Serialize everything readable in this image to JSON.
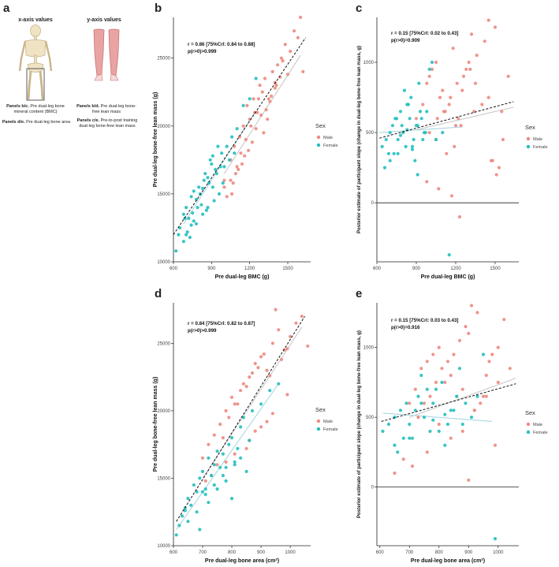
{
  "colors": {
    "male": "#ec8a80",
    "female": "#23bfbf",
    "axis": "#222222",
    "fitMale": "#c9c9c9",
    "fitFemale": "#a9d8e3"
  },
  "panel_a": {
    "letter": "a",
    "x_header": "x-axis values",
    "y_header": "y-axis values",
    "skeleton_icon": "skeleton-icon",
    "legs_icon": "muscle-legs-icon",
    "captions": [
      {
        "bold": "Panels b/c.",
        "text": " Pre dual-leg bone mineral content (BMC)"
      },
      {
        "bold": "Panels d/e.",
        "text": " Pre dual-leg bone area"
      },
      {
        "bold": "Panels b/d.",
        "text": " Pre dual-leg bone-free lean mass"
      },
      {
        "bold": "Panels c/e.",
        "text": " Pre-to-post training dual-leg bone-free lean mass"
      }
    ]
  },
  "chart_data": [
    {
      "id": "b",
      "letter": "b",
      "type": "scatter",
      "xlabel": "Pre dual-leg BMC (g)",
      "ylabel": "Pre dual-leg bone-free lean mass (g)",
      "xlim": [
        600,
        1680
      ],
      "ylim": [
        10000,
        28000
      ],
      "xticks": [
        600,
        900,
        1200,
        1500
      ],
      "yticks": [
        10000,
        15000,
        20000,
        25000
      ],
      "annotation": [
        "r = 0.86 [75%CrI: 0.84 to 0.88]",
        "p(r>0)>0.999"
      ],
      "legend": {
        "title": "Sex",
        "items": [
          "Male",
          "Female"
        ]
      },
      "fits": {
        "overall": [
          [
            600,
            12000
          ],
          [
            1640,
            26500
          ]
        ],
        "male": [
          [
            1000,
            16500
          ],
          [
            1600,
            25200
          ]
        ],
        "female": [
          [
            680,
            12800
          ],
          [
            1240,
            21000
          ]
        ]
      },
      "series": [
        {
          "name": "Male",
          "x": [
            1050,
            1080,
            1120,
            1150,
            1180,
            1200,
            1230,
            1260,
            1280,
            1300,
            1320,
            1350,
            1380,
            1400,
            1420,
            1450,
            1480,
            1500,
            1550,
            1600,
            1050,
            1100,
            1130,
            1170,
            1210,
            1240,
            1270,
            1310,
            1340,
            1360,
            1400,
            1440,
            1460,
            1520,
            1580,
            1620,
            1000,
            1060,
            1090,
            1140,
            1190,
            1250,
            1290,
            1330,
            1370,
            1410,
            1000,
            1020,
            1070,
            1110,
            1160,
            1220
          ],
          "y": [
            17500,
            18500,
            19200,
            20000,
            21500,
            20500,
            22000,
            21000,
            23000,
            22500,
            23500,
            22000,
            24000,
            23200,
            24500,
            25000,
            26000,
            23800,
            27000,
            28000,
            16000,
            17000,
            18000,
            19000,
            20000,
            21000,
            22000,
            19500,
            20500,
            21800,
            22800,
            23600,
            24800,
            25500,
            26500,
            24000,
            15500,
            15000,
            16500,
            17200,
            18200,
            19800,
            20800,
            21200,
            22200,
            23000,
            16000,
            14800,
            15800,
            16800,
            17800,
            18800
          ]
        },
        {
          "name": "Female",
          "x": [
            620,
            650,
            680,
            700,
            720,
            740,
            760,
            780,
            800,
            820,
            840,
            860,
            880,
            900,
            920,
            940,
            960,
            980,
            1000,
            1020,
            1040,
            1060,
            1080,
            1100,
            1150,
            1200,
            1250,
            700,
            730,
            760,
            790,
            810,
            830,
            850,
            870,
            890,
            910,
            930,
            950,
            970,
            990,
            680,
            710,
            750,
            780,
            830,
            870,
            910,
            640,
            690,
            740
          ],
          "y": [
            10800,
            12500,
            13500,
            14000,
            13200,
            14800,
            15200,
            12800,
            15500,
            14200,
            16000,
            13800,
            15800,
            17200,
            14500,
            16500,
            15000,
            18000,
            17000,
            18500,
            17500,
            19200,
            18000,
            19800,
            21500,
            22000,
            23500,
            12000,
            11800,
            13000,
            14000,
            15000,
            13500,
            16500,
            14000,
            17500,
            15500,
            16800,
            18500,
            17000,
            15800,
            11500,
            12200,
            13600,
            14600,
            15400,
            16200,
            17800,
            12000,
            13200,
            12700
          ]
        }
      ]
    },
    {
      "id": "c",
      "letter": "c",
      "type": "scatter",
      "xlabel": "Pre dual-leg BMC (g)",
      "ylabel": "Posterior estimate of participant slope (change in dual-leg bone-free lean mass, g)",
      "xlim": [
        600,
        1680
      ],
      "ylim": [
        -420,
        1320
      ],
      "xticks": [
        600,
        900,
        1200,
        1500
      ],
      "yticks": [
        0,
        500,
        1000
      ],
      "zero_line": true,
      "annotation": [
        "r = 0.15 [75%CrI: 0.02 to 0.43]",
        "p(r>0)=0.909"
      ],
      "legend": {
        "title": "Sex",
        "items": [
          "Male",
          "Female"
        ]
      },
      "fits": {
        "overall": [
          [
            620,
            460
          ],
          [
            1640,
            720
          ]
        ],
        "male": [
          [
            900,
            520
          ],
          [
            1640,
            680
          ]
        ],
        "female": [
          [
            620,
            500
          ],
          [
            1250,
            540
          ]
        ]
      },
      "series": [
        {
          "name": "Male",
          "x": [
            900,
            950,
            980,
            1000,
            1020,
            1050,
            1080,
            1100,
            1120,
            1150,
            1180,
            1200,
            1220,
            1250,
            1280,
            1300,
            1320,
            1350,
            1400,
            1450,
            1500,
            1550,
            1600,
            1000,
            1060,
            1110,
            1160,
            1210,
            1260,
            1310,
            1360,
            1420,
            1470,
            1530,
            1050,
            1130,
            1190,
            1240,
            1340,
            1450,
            1510,
            980,
            1070,
            1170,
            1230,
            1480,
            1560
          ],
          "y": [
            600,
            700,
            850,
            900,
            950,
            1000,
            750,
            800,
            650,
            700,
            1100,
            550,
            600,
            800,
            950,
            1000,
            1200,
            850,
            700,
            1300,
            1250,
            650,
            900,
            500,
            600,
            650,
            750,
            850,
            900,
            950,
            1050,
            1150,
            300,
            250,
            450,
            350,
            400,
            550,
            650,
            750,
            200,
            150,
            100,
            50,
            -100,
            300,
            450
          ]
        },
        {
          "name": "Female",
          "x": [
            640,
            670,
            700,
            720,
            740,
            760,
            780,
            800,
            820,
            840,
            860,
            880,
            900,
            920,
            940,
            960,
            980,
            1000,
            1020,
            1050,
            1100,
            700,
            730,
            760,
            790,
            810,
            830,
            850,
            870,
            890,
            910,
            930,
            950,
            970,
            660,
            690,
            750,
            780,
            830,
            870,
            910,
            1150
          ],
          "y": [
            400,
            450,
            500,
            550,
            600,
            350,
            650,
            500,
            400,
            700,
            750,
            450,
            550,
            850,
            600,
            500,
            650,
            950,
            1000,
            450,
            500,
            300,
            350,
            450,
            550,
            800,
            700,
            600,
            400,
            300,
            550,
            650,
            450,
            500,
            250,
            350,
            600,
            480,
            520,
            380,
            200,
            -370
          ]
        }
      ]
    },
    {
      "id": "d",
      "letter": "d",
      "type": "scatter",
      "xlabel": "Pre dual-leg bone area (cm²)",
      "ylabel": "Pre dual-leg bone-free lean mass (g)",
      "xlim": [
        600,
        1070
      ],
      "ylim": [
        10000,
        28000
      ],
      "xticks": [
        600,
        700,
        800,
        900,
        1000
      ],
      "yticks": [
        10000,
        15000,
        20000,
        25000
      ],
      "annotation": [
        "r = 0.84 [75%CrI: 0.82 to 0.87]",
        "p(r>0)>0.999"
      ],
      "legend": {
        "title": "Sex",
        "items": [
          "Male",
          "Female"
        ]
      },
      "fits": {
        "overall": [
          [
            610,
            11800
          ],
          [
            1050,
            27000
          ]
        ],
        "male": [
          [
            700,
            15000
          ],
          [
            1040,
            26200
          ]
        ],
        "female": [
          [
            610,
            11200
          ],
          [
            960,
            22000
          ]
        ]
      },
      "series": [
        {
          "name": "Male",
          "x": [
            700,
            720,
            740,
            760,
            780,
            800,
            820,
            840,
            860,
            880,
            900,
            920,
            940,
            960,
            980,
            1000,
            1020,
            1040,
            1060,
            750,
            770,
            790,
            810,
            830,
            850,
            870,
            890,
            910,
            930,
            950,
            970,
            990,
            730,
            810,
            860,
            900,
            940,
            990,
            710,
            780,
            850,
            880,
            920
          ],
          "y": [
            16500,
            17500,
            18200,
            19000,
            20000,
            21000,
            20500,
            22000,
            22500,
            23500,
            24000,
            23000,
            25000,
            26000,
            24500,
            25500,
            26500,
            27000,
            24800,
            16000,
            18000,
            19500,
            20500,
            21500,
            21800,
            22800,
            23200,
            24200,
            22600,
            27500,
            23800,
            24600,
            15200,
            16800,
            17800,
            18800,
            19800,
            21200,
            14800,
            16200,
            17200,
            18500,
            19200
          ]
        },
        {
          "name": "Female",
          "x": [
            610,
            620,
            630,
            640,
            650,
            660,
            670,
            680,
            690,
            700,
            710,
            720,
            730,
            740,
            750,
            760,
            770,
            780,
            790,
            800,
            810,
            820,
            830,
            840,
            850,
            870,
            900,
            930,
            960,
            650,
            680,
            710,
            740,
            770,
            800,
            830,
            860,
            690,
            720,
            750,
            780,
            810,
            640,
            700
          ],
          "y": [
            10800,
            11500,
            12200,
            12800,
            13500,
            13000,
            14500,
            14000,
            15000,
            15500,
            14200,
            16500,
            15200,
            16000,
            17000,
            15800,
            16800,
            14800,
            17500,
            18000,
            16200,
            17200,
            18800,
            19500,
            15500,
            20000,
            20500,
            21500,
            22000,
            11800,
            12500,
            13800,
            14500,
            15200,
            13500,
            16500,
            17800,
            11200,
            13200,
            14200,
            15800,
            16000,
            12600,
            14000
          ]
        }
      ]
    },
    {
      "id": "e",
      "letter": "e",
      "type": "scatter",
      "xlabel": "Pre dual-leg bone area (cm²)",
      "ylabel": "Posterior estimate of participant slope (change in dual-leg bone-free lean mass, g)",
      "xlim": [
        590,
        1070
      ],
      "ylim": [
        -420,
        1320
      ],
      "xticks": [
        600,
        700,
        800,
        900,
        1000
      ],
      "yticks": [
        0,
        500,
        1000
      ],
      "zero_line": true,
      "annotation": [
        "r = 0.15 [75%CrI: 0.03 to 0.43]",
        "p(r>0)=0.916"
      ],
      "legend": {
        "title": "Sex",
        "items": [
          "Male",
          "Female"
        ]
      },
      "fits": {
        "overall": [
          [
            605,
            470
          ],
          [
            1060,
            740
          ]
        ],
        "male": [
          [
            700,
            500
          ],
          [
            1060,
            780
          ]
        ],
        "female": [
          [
            610,
            530
          ],
          [
            980,
            470
          ]
        ]
      },
      "series": [
        {
          "name": "Male",
          "x": [
            700,
            720,
            740,
            760,
            780,
            800,
            820,
            840,
            860,
            880,
            900,
            920,
            940,
            960,
            980,
            1000,
            1020,
            1040,
            730,
            750,
            770,
            790,
            810,
            830,
            850,
            870,
            890,
            910,
            930,
            950,
            970,
            990,
            760,
            800,
            840,
            880,
            920,
            960,
            1000,
            680,
            710,
            650,
            900
          ],
          "y": [
            600,
            700,
            850,
            900,
            950,
            1000,
            750,
            800,
            650,
            700,
            1100,
            550,
            600,
            800,
            950,
            1000,
            1200,
            850,
            500,
            600,
            650,
            750,
            850,
            900,
            950,
            1050,
            1150,
            1300,
            1250,
            650,
            900,
            300,
            250,
            450,
            350,
            400,
            550,
            650,
            750,
            200,
            150,
            100,
            50
          ]
        },
        {
          "name": "Female",
          "x": [
            610,
            630,
            650,
            670,
            690,
            710,
            730,
            750,
            770,
            790,
            810,
            830,
            850,
            870,
            890,
            910,
            930,
            950,
            650,
            680,
            700,
            720,
            740,
            760,
            780,
            800,
            820,
            840,
            860,
            880,
            660,
            700,
            740,
            780,
            820,
            990
          ],
          "y": [
            400,
            450,
            500,
            550,
            600,
            350,
            650,
            500,
            400,
            700,
            750,
            450,
            550,
            850,
            600,
            500,
            650,
            950,
            300,
            350,
            450,
            550,
            800,
            700,
            600,
            400,
            300,
            550,
            650,
            450,
            250,
            350,
            600,
            480,
            520,
            -370
          ]
        }
      ]
    }
  ]
}
